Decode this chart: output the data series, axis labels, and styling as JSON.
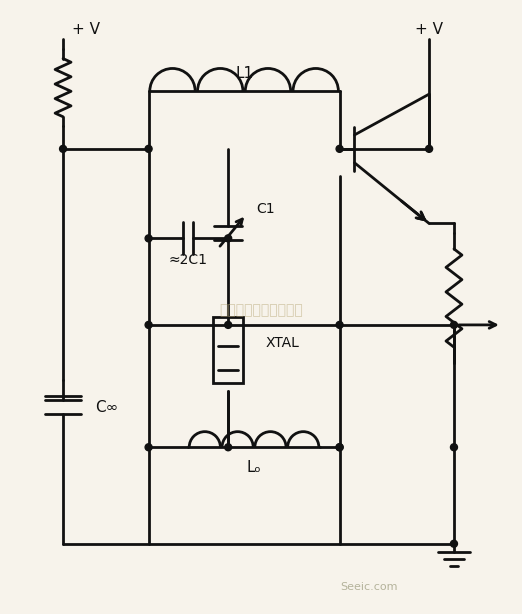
{
  "background_color": "#f7f3eb",
  "line_color": "#111111",
  "text_color": "#111111",
  "watermark": "杭州将睿科技有限公司",
  "watermark_color": "#b8a878",
  "labels": {
    "vcc_left": "+ V",
    "vcc_right": "+ V",
    "L1": "L1",
    "C1": "C1",
    "approx2C1": "≈2C1",
    "XTAL": "XTAL",
    "Lo": "Lₒ",
    "Cinf": "C∞"
  },
  "figsize": [
    5.22,
    6.14
  ],
  "dpi": 100
}
